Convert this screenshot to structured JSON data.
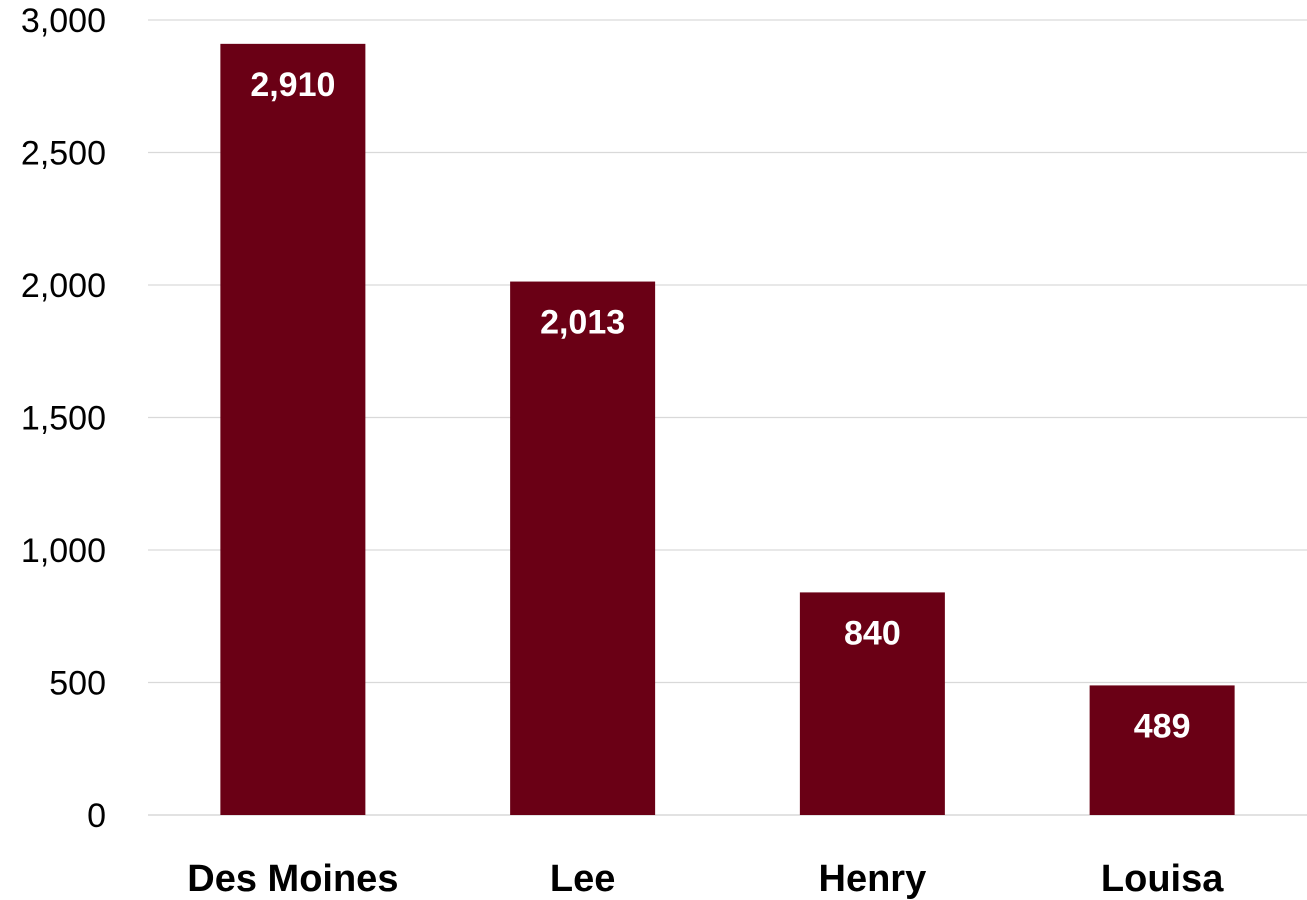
{
  "chart_data": {
    "type": "bar",
    "title": "",
    "xlabel": "",
    "ylabel": "",
    "categories": [
      "Des Moines",
      "Lee",
      "Henry",
      "Louisa"
    ],
    "values": [
      2910,
      2013,
      840,
      489
    ],
    "value_labels": [
      "2,910",
      "2,013",
      "840",
      "489"
    ],
    "ylim": [
      0,
      3000
    ],
    "y_ticks": [
      0,
      500,
      1000,
      1500,
      2000,
      2500,
      3000
    ],
    "y_tick_labels": [
      "0",
      "500",
      "1,000",
      "1,500",
      "2,000",
      "2,500",
      "3,000"
    ],
    "grid": true,
    "legend": "none",
    "colors": {
      "bar": "#6a0015",
      "grid": "#d9d9d9",
      "data_label": "#ffffff",
      "text": "#000000"
    }
  }
}
